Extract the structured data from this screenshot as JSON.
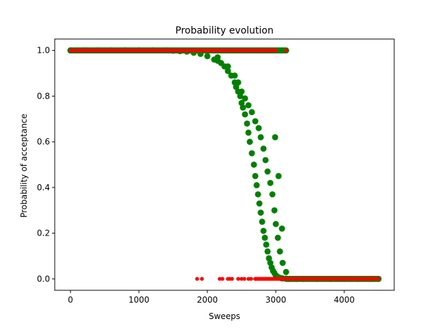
{
  "chart_data": {
    "type": "scatter",
    "title": "Probability evolution",
    "xlabel": "Sweeps",
    "ylabel": "Probability of acceptance",
    "xlim": [
      -230,
      4730
    ],
    "ylim": [
      -0.05,
      1.05
    ],
    "xticks": [
      0,
      1000,
      2000,
      3000,
      4000
    ],
    "yticks": [
      0.0,
      0.2,
      0.4,
      0.6,
      0.8,
      1.0
    ],
    "xtick_labels": [
      "0",
      "1000",
      "2000",
      "3000",
      "4000"
    ],
    "ytick_labels": [
      "0.0",
      "0.2",
      "0.4",
      "0.6",
      "0.8",
      "1.0"
    ],
    "grid": false,
    "legend": "none",
    "series": [
      {
        "color": "#008000",
        "marker": "large-circle",
        "x": [
          0,
          200,
          400,
          600,
          800,
          1000,
          1200,
          1400,
          1500,
          1600,
          1700,
          1800,
          1900,
          2000,
          2100,
          2150,
          2200,
          2250,
          2300,
          2350,
          2400,
          2420,
          2450,
          2480,
          2500,
          2520,
          2550,
          2580,
          2600,
          2620,
          2650,
          2680,
          2700,
          2720,
          2740,
          2760,
          2780,
          2800,
          2820,
          2840,
          2860,
          2880,
          2900,
          2920,
          2940,
          2960,
          2980,
          3000,
          3020,
          3050,
          3080,
          3100,
          3150,
          3200,
          3300,
          3400,
          3600,
          3800,
          4000,
          4200,
          4400,
          4500,
          2150,
          2300,
          2400,
          2450,
          2500,
          2550,
          2600,
          2650,
          2700,
          2750,
          2780,
          2820,
          2850,
          2880,
          2920,
          2950,
          2980,
          3000,
          3030,
          3060,
          3100,
          3150,
          3090,
          3040,
          2990
        ],
        "y": [
          1.0,
          1.0,
          1.0,
          1.0,
          1.0,
          1.0,
          1.0,
          1.0,
          0.999,
          0.997,
          0.995,
          0.99,
          0.985,
          0.975,
          0.96,
          0.955,
          0.945,
          0.93,
          0.91,
          0.89,
          0.86,
          0.84,
          0.82,
          0.8,
          0.77,
          0.75,
          0.72,
          0.68,
          0.64,
          0.6,
          0.55,
          0.5,
          0.45,
          0.41,
          0.37,
          0.33,
          0.29,
          0.25,
          0.21,
          0.18,
          0.15,
          0.12,
          0.09,
          0.07,
          0.05,
          0.035,
          0.025,
          0.015,
          0.01,
          0.006,
          0.003,
          0.002,
          0.001,
          0.0,
          0.0,
          0.0,
          0.0,
          0.0,
          0.0,
          0.0,
          0.0,
          0.0,
          0.97,
          0.93,
          0.89,
          0.86,
          0.82,
          0.79,
          0.76,
          0.73,
          0.69,
          0.66,
          0.62,
          0.57,
          0.52,
          0.47,
          0.42,
          0.37,
          0.3,
          0.24,
          0.18,
          0.12,
          0.07,
          0.03,
          0.22,
          0.45,
          0.62
        ]
      },
      {
        "color": "#ff0000",
        "marker": "small-circle",
        "x": [
          0,
          200,
          400,
          600,
          800,
          1000,
          1200,
          1400,
          1600,
          1800,
          2000,
          2200,
          2400,
          2600,
          2800,
          3000,
          3150,
          1850,
          1920,
          2180,
          2220,
          2300,
          2330,
          2360,
          2450,
          2500,
          2540,
          2600,
          2640,
          2700,
          2750,
          2800,
          2850,
          2900,
          2950,
          3000,
          3050,
          3100,
          3200,
          3300,
          3400,
          3500,
          3600,
          3700,
          3800,
          3900,
          4000,
          4100,
          4200,
          4300,
          4400,
          4500
        ],
        "y": [
          1.0,
          1.0,
          1.0,
          1.0,
          1.0,
          1.0,
          1.0,
          1.0,
          1.0,
          1.0,
          1.0,
          1.0,
          1.0,
          1.0,
          1.0,
          1.0,
          1.0,
          0.0,
          0.0,
          0.0,
          0.0,
          0.0,
          0.0,
          0.0,
          0.0,
          0.0,
          0.0,
          0.0,
          0.0,
          0.0,
          0.0,
          0.0,
          0.0,
          0.0,
          0.0,
          0.0,
          0.0,
          0.0,
          0.0,
          0.0,
          0.0,
          0.0,
          0.0,
          0.0,
          0.0,
          0.0,
          0.0,
          0.0,
          0.0,
          0.0,
          0.0,
          0.0
        ]
      }
    ]
  }
}
